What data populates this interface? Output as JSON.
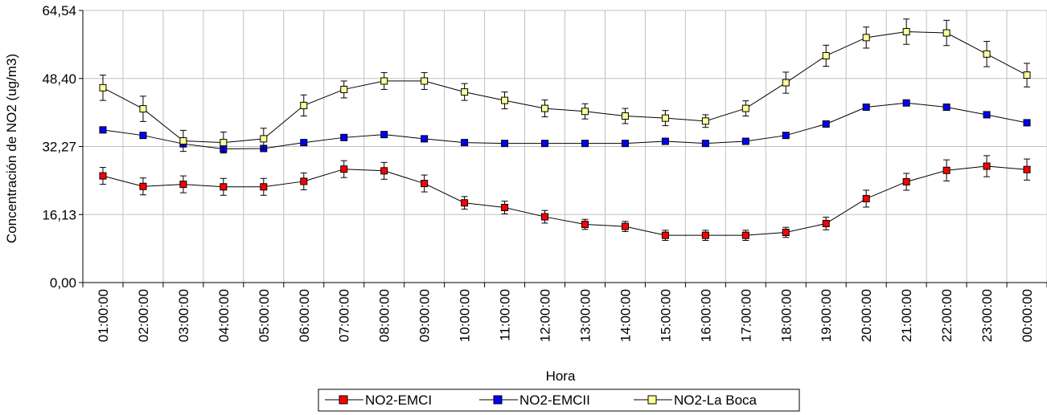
{
  "chart_data": {
    "type": "line",
    "title": "",
    "xlabel": "Hora",
    "ylabel": "Concentración de NO2 (ug/m3)",
    "ylim": [
      0,
      64.54
    ],
    "yticks": [
      "0,00",
      "16,13",
      "32,27",
      "48,40",
      "64,54"
    ],
    "ytick_values": [
      0,
      16.13,
      32.27,
      48.4,
      64.54
    ],
    "grid": "vertical-and-horizontal",
    "legend_position": "bottom-center",
    "categories": [
      "01:00:00",
      "02:00:00",
      "03:00:00",
      "04:00:00",
      "05:00:00",
      "06:00:00",
      "07:00:00",
      "08:00:00",
      "09:00:00",
      "10:00:00",
      "11:00:00",
      "12:00:00",
      "13:00:00",
      "14:00:00",
      "15:00:00",
      "16:00:00",
      "17:00:00",
      "18:00:00",
      "19:00:00",
      "20:00:00",
      "21:00:00",
      "22:00:00",
      "23:00:00",
      "00:00:00"
    ],
    "series": [
      {
        "name": "NO2-EMCI",
        "color": "#ff0000",
        "values": [
          25.3,
          22.8,
          23.3,
          22.7,
          22.7,
          24.0,
          26.9,
          26.5,
          23.5,
          18.9,
          17.8,
          15.6,
          13.8,
          13.3,
          11.2,
          11.2,
          11.2,
          11.9,
          14.0,
          19.9,
          23.9,
          26.6,
          27.6,
          26.8
        ],
        "errors": [
          2.0,
          2.0,
          2.0,
          2.0,
          2.0,
          2.0,
          2.0,
          2.0,
          2.0,
          1.5,
          1.5,
          1.5,
          1.2,
          1.2,
          1.2,
          1.2,
          1.2,
          1.2,
          1.5,
          2.0,
          2.0,
          2.5,
          2.5,
          2.5
        ]
      },
      {
        "name": "NO2-EMCII",
        "color": "#0000ff",
        "values": [
          36.2,
          34.9,
          32.9,
          31.7,
          31.8,
          33.2,
          34.4,
          35.1,
          34.1,
          33.2,
          33.0,
          33.0,
          33.0,
          33.0,
          33.5,
          33.0,
          33.5,
          34.9,
          37.6,
          41.6,
          42.6,
          41.6,
          39.8,
          37.9
        ]
      },
      {
        "name": "NO2-La Boca",
        "color": "#ffff99",
        "values": [
          46.2,
          41.2,
          33.6,
          33.2,
          34.1,
          42.0,
          45.8,
          47.8,
          47.8,
          45.2,
          43.2,
          41.3,
          40.6,
          39.5,
          39.0,
          38.3,
          41.3,
          47.4,
          53.8,
          58.1,
          59.5,
          59.2,
          54.2,
          49.2
        ],
        "errors": [
          3.0,
          3.0,
          2.5,
          2.5,
          2.5,
          2.5,
          2.0,
          2.0,
          2.0,
          2.0,
          2.0,
          2.0,
          1.8,
          1.8,
          1.8,
          1.5,
          1.8,
          2.5,
          2.5,
          2.5,
          3.0,
          3.0,
          3.0,
          2.8
        ]
      }
    ]
  }
}
